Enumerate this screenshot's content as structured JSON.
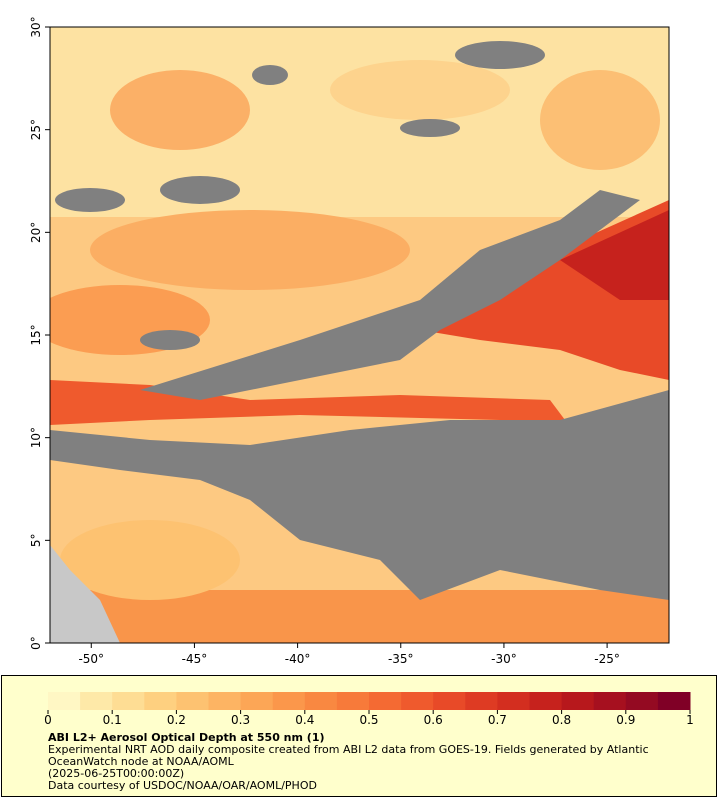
{
  "map": {
    "xlim": [
      -52,
      -22
    ],
    "ylim": [
      0,
      30
    ],
    "xticks": [
      {
        "value": -50,
        "label": "-50°"
      },
      {
        "value": -45,
        "label": "-45°"
      },
      {
        "value": -40,
        "label": "-40°"
      },
      {
        "value": -35,
        "label": "-35°"
      },
      {
        "value": -30,
        "label": "-30°"
      },
      {
        "value": -25,
        "label": "-25°"
      }
    ],
    "yticks": [
      {
        "value": 0,
        "label": "0°"
      },
      {
        "value": 5,
        "label": "5°"
      },
      {
        "value": 10,
        "label": "10°"
      },
      {
        "value": 15,
        "label": "15°"
      },
      {
        "value": 20,
        "label": "20°"
      },
      {
        "value": 25,
        "label": "25°"
      },
      {
        "value": 30,
        "label": "30°"
      }
    ]
  },
  "colorbar": {
    "range": [
      0,
      1
    ],
    "ticks": [
      0,
      0.1,
      0.2,
      0.3,
      0.4,
      0.5,
      0.6,
      0.7,
      0.8,
      0.9,
      1
    ],
    "colors": [
      "#fff7c4",
      "#fee9a8",
      "#fedd94",
      "#fed080",
      "#fdc271",
      "#fdb463",
      "#fca656",
      "#fb974b",
      "#f98841",
      "#f77a3a",
      "#f46a33",
      "#ef5a2d",
      "#e84a28",
      "#de3b23",
      "#d32e1f",
      "#c6221d",
      "#b7181c",
      "#a6101f",
      "#940a22",
      "#800026"
    ]
  },
  "title": "ABI L2+ Aerosol Optical Depth at 550 nm (1)",
  "description": "Experimental NRT AOD daily composite created from ABI L2 data from GOES-19. Fields generated by Atlantic OceanWatch node at NOAA/AOML",
  "date": "(2025-06-25T00:00:00Z)",
  "credit": "Data courtesy of USDOC/NOAA/OAR/AOML/PHOD"
}
